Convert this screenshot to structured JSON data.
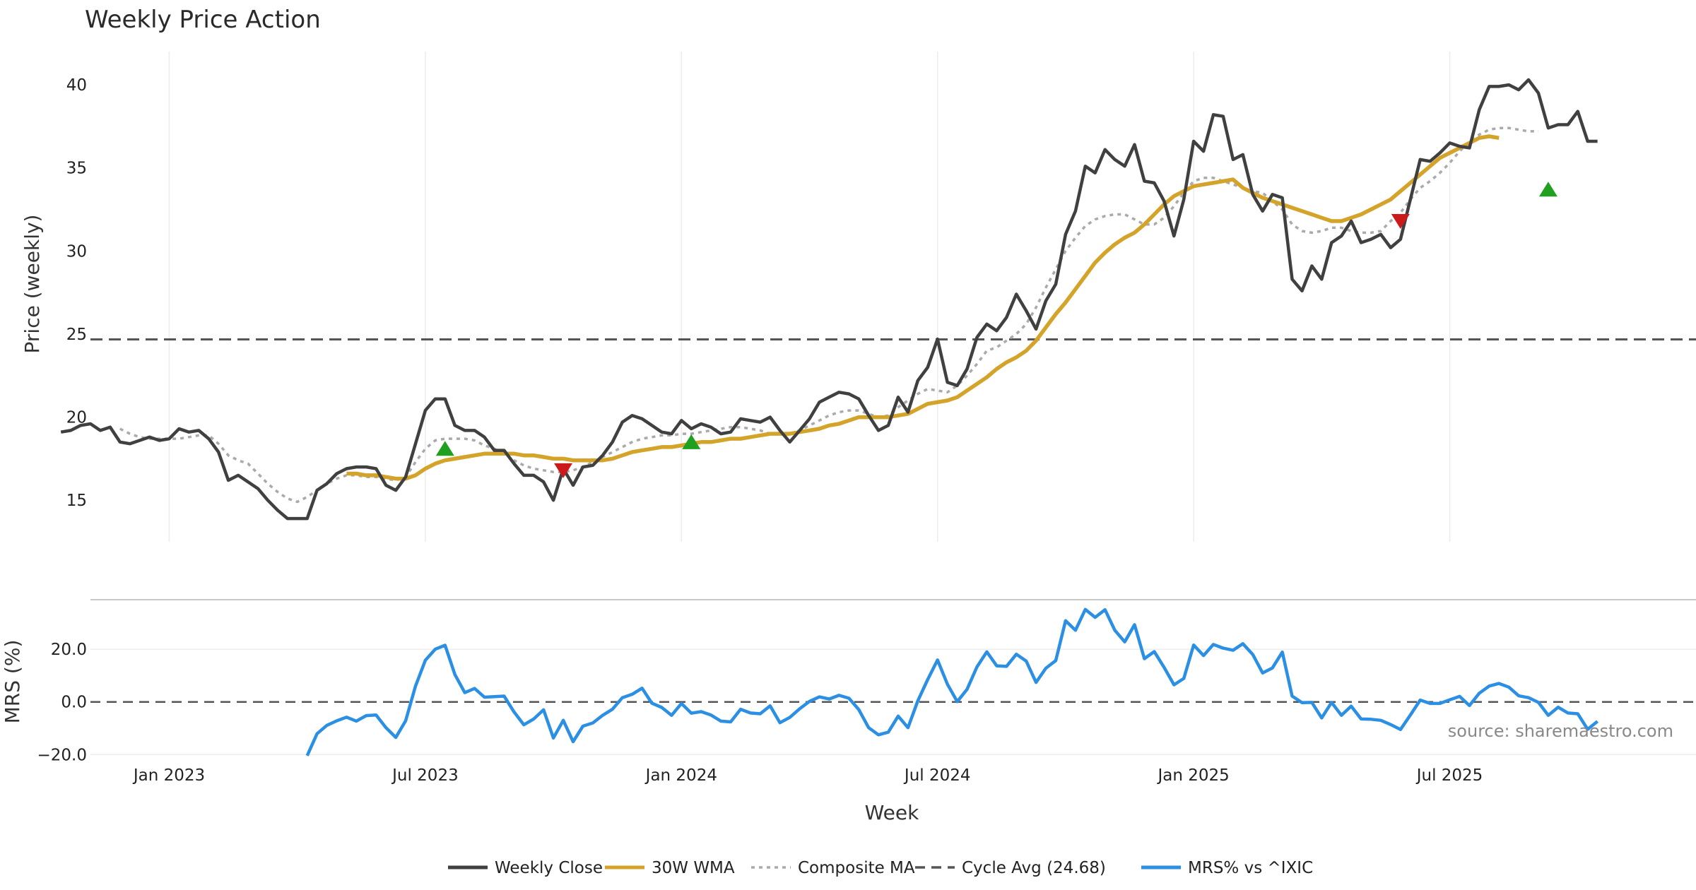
{
  "chart_data": {
    "type": "line",
    "title": "Weekly Price Action",
    "source": "source: sharemaestro.com",
    "xlabel": "Week",
    "x_ticks": [
      {
        "label": "Jan 2023",
        "week": 11
      },
      {
        "label": "Jul 2023",
        "week": 37
      },
      {
        "label": "Jan 2024",
        "week": 63
      },
      {
        "label": "Jul 2024",
        "week": 89
      },
      {
        "label": "Jan 2025",
        "week": 115
      },
      {
        "label": "Jul 2025",
        "week": 141
      }
    ],
    "x_range": [
      3,
      166
    ],
    "price_panel": {
      "ylabel": "Price (weekly)",
      "ylim": [
        12.5,
        42
      ],
      "yticks": [
        15,
        20,
        25,
        30,
        35,
        40
      ],
      "cycle_avg": 24.68,
      "weekly_close": [
        19.1,
        19.2,
        19.5,
        19.6,
        19.2,
        19.4,
        18.5,
        18.4,
        18.6,
        18.8,
        18.6,
        18.7,
        19.3,
        19.1,
        19.2,
        18.7,
        17.9,
        16.2,
        16.5,
        16.1,
        15.7,
        15,
        14.4,
        13.9,
        13.9,
        13.9,
        15.6,
        16,
        16.6,
        16.9,
        17,
        17,
        16.9,
        15.9,
        15.6,
        16.4,
        18.4,
        20.4,
        21.1,
        21.1,
        19.5,
        19.2,
        19.2,
        18.8,
        18,
        18,
        17.2,
        16.5,
        16.5,
        16.1,
        15,
        16.9,
        15.9,
        17,
        17.1,
        17.7,
        18.5,
        19.7,
        20.1,
        19.9,
        19.5,
        19.1,
        19,
        19.8,
        19.3,
        19.6,
        19.4,
        19,
        19.1,
        19.9,
        19.8,
        19.7,
        20,
        19.2,
        18.5,
        19.2,
        19.9,
        20.9,
        21.2,
        21.5,
        21.4,
        21.1,
        20.1,
        19.2,
        19.5,
        21.2,
        20.3,
        22.2,
        23,
        24.7,
        22.1,
        21.9,
        22.9,
        24.8,
        25.6,
        25.2,
        26,
        27.4,
        26.4,
        25.3,
        27,
        28,
        31,
        32.4,
        35.1,
        34.7,
        36.1,
        35.5,
        35.1,
        36.4,
        34.2,
        34.1,
        33,
        30.9,
        33.1,
        36.6,
        36,
        38.2,
        38.1,
        35.5,
        35.8,
        33.4,
        32.4,
        33.4,
        33.2,
        28.3,
        27.6,
        29.1,
        28.3,
        30.5,
        30.9,
        31.8,
        30.5,
        30.7,
        31,
        30.2,
        30.7,
        33.1,
        35.5,
        35.4,
        35.9,
        36.5,
        36.3,
        36.2,
        38.5,
        39.9,
        39.9,
        40,
        39.7,
        40.3,
        39.5,
        37.4,
        37.6,
        37.6,
        38.4,
        36.6,
        36.6
      ],
      "wma_30": [
        null,
        null,
        null,
        null,
        null,
        null,
        null,
        null,
        null,
        null,
        null,
        null,
        null,
        null,
        null,
        null,
        null,
        null,
        null,
        null,
        null,
        null,
        null,
        null,
        null,
        null,
        null,
        null,
        null,
        16.6,
        16.6,
        16.5,
        16.5,
        16.4,
        16.3,
        16.3,
        16.5,
        16.9,
        17.2,
        17.4,
        17.5,
        17.6,
        17.7,
        17.8,
        17.8,
        17.8,
        17.8,
        17.7,
        17.7,
        17.6,
        17.5,
        17.5,
        17.4,
        17.4,
        17.4,
        17.4,
        17.5,
        17.7,
        17.9,
        18,
        18.1,
        18.2,
        18.2,
        18.3,
        18.4,
        18.5,
        18.5,
        18.6,
        18.7,
        18.7,
        18.8,
        18.9,
        19,
        19,
        19,
        19.1,
        19.2,
        19.3,
        19.5,
        19.6,
        19.8,
        20,
        20,
        20,
        20,
        20.1,
        20.2,
        20.5,
        20.8,
        20.9,
        21,
        21.2,
        21.6,
        22,
        22.4,
        22.9,
        23.3,
        23.6,
        24,
        24.6,
        25.4,
        26.2,
        26.9,
        27.7,
        28.5,
        29.3,
        29.9,
        30.4,
        30.8,
        31.1,
        31.6,
        32.2,
        32.8,
        33.3,
        33.6,
        33.9,
        34,
        34.1,
        34.2,
        34.3,
        33.8,
        33.5,
        33.2,
        33,
        32.8,
        32.6,
        32.4,
        32.2,
        32,
        31.8,
        31.8,
        32,
        32.2,
        32.5,
        32.8,
        33.1,
        33.6,
        34.1,
        34.6,
        35.1,
        35.6,
        35.9,
        36.2,
        36.5,
        36.8,
        36.9,
        36.8
      ],
      "composite_ma": [
        null,
        null,
        null,
        null,
        null,
        null,
        19.3,
        19,
        18.8,
        18.7,
        18.7,
        18.7,
        18.7,
        18.8,
        18.9,
        18.9,
        18.4,
        17.7,
        17.4,
        17.2,
        16.6,
        16,
        15.5,
        15.1,
        14.9,
        15.2,
        15.6,
        16,
        16.3,
        16.5,
        16.5,
        16.4,
        16.4,
        16.3,
        16.2,
        16.4,
        17.3,
        18.1,
        18.6,
        18.7,
        18.7,
        18.7,
        18.6,
        18.3,
        18.1,
        17.8,
        17.4,
        17.1,
        16.9,
        16.8,
        16.7,
        16.7,
        16.8,
        17,
        17.3,
        17.6,
        17.9,
        18.2,
        18.5,
        18.7,
        18.8,
        18.9,
        18.9,
        19,
        19,
        19.1,
        19.2,
        19.3,
        19.4,
        19.4,
        19.3,
        19.2,
        19,
        19,
        19,
        19.2,
        19.5,
        19.8,
        20.1,
        20.3,
        20.4,
        20.4,
        20.2,
        20,
        20.1,
        20.6,
        21,
        21.4,
        21.7,
        21.6,
        21.5,
        21.9,
        22.5,
        23.2,
        24,
        24.2,
        24.6,
        25,
        25.6,
        26.6,
        27.8,
        28.9,
        30,
        30.8,
        31.5,
        31.9,
        32.1,
        32.2,
        32.2,
        31.9,
        31.6,
        31.6,
        32,
        32.7,
        33.5,
        34.2,
        34.4,
        34.4,
        34.2,
        34,
        33.8,
        33.6,
        33.5,
        33,
        32.5,
        31.6,
        31.2,
        31.1,
        31.2,
        31.4,
        31.4,
        31.2,
        31.1,
        31.1,
        31.2,
        31.8,
        32.3,
        33.1,
        33.8,
        34.2,
        34.7,
        35.3,
        36,
        36.6,
        37,
        37.3,
        37.4,
        37.4,
        37.3,
        37.2,
        37.2
      ],
      "buy_signals": [
        {
          "week": 39,
          "price": 18.1
        },
        {
          "week": 64,
          "price": 18.5
        },
        {
          "week": 151,
          "price": 33.7
        }
      ],
      "sell_signals": [
        {
          "week": 51,
          "price": 16.8
        },
        {
          "week": 136,
          "price": 31.8
        }
      ]
    },
    "mrs_panel": {
      "ylabel": "MRS (%)",
      "ylim": [
        -21,
        38
      ],
      "yticks": [
        20.0,
        0.0,
        -20.0
      ],
      "ytick_labels": [
        "20.0",
        "0.0",
        "−20.0"
      ],
      "zero_line": 0,
      "mrs": [
        null,
        null,
        null,
        null,
        null,
        null,
        null,
        null,
        null,
        null,
        null,
        null,
        null,
        null,
        null,
        null,
        null,
        null,
        null,
        null,
        null,
        null,
        null,
        null,
        null,
        -20.4,
        -12.1,
        -8.9,
        -7.2,
        -5.8,
        -7.3,
        -5.2,
        -5,
        -9.8,
        -13.5,
        -7.2,
        6,
        15.8,
        20,
        21.5,
        10.4,
        3.5,
        5.1,
        1.8,
        2,
        2.2,
        -3.8,
        -8.7,
        -6.5,
        -3,
        -13.7,
        -7,
        -15.1,
        -9.2,
        -8,
        -5.1,
        -2.8,
        1.6,
        2.9,
        5.2,
        -0.5,
        -2.1,
        -5.1,
        -0.6,
        -4.3,
        -3.7,
        -5,
        -7.3,
        -7.6,
        -2.8,
        -4.2,
        -4.5,
        -1.5,
        -7.9,
        -5.9,
        -2.6,
        0.2,
        1.9,
        1.1,
        2.5,
        1.4,
        -2.9,
        -9.8,
        -12.5,
        -11.5,
        -5.4,
        -9.8,
        0.4,
        8.5,
        15.9,
        6.7,
        0.1,
        4.8,
        13.3,
        19,
        13.7,
        13.5,
        18.1,
        15.5,
        7.4,
        12.8,
        15.7,
        30.8,
        27.2,
        35.1,
        32.1,
        35,
        27.2,
        22.8,
        29.3,
        16.4,
        19.1,
        13.1,
        6.5,
        8.9,
        21.6,
        17.6,
        21.8,
        20.4,
        19.6,
        22.1,
        18,
        11,
        12.9,
        18.9,
        2.2,
        -0.3,
        -0.2,
        -6.1,
        -0.2,
        -5.1,
        -1.6,
        -6.5,
        -6.6,
        -7,
        -8.6,
        -10.5,
        -5,
        0.7,
        -0.6,
        -0.6,
        0.8,
        2.1,
        -1.4,
        3.3,
        6,
        7,
        5.6,
        2.3,
        1.6,
        -0.2,
        -5.1,
        -2,
        -4.2,
        -4.5,
        -10.4,
        -7.4
      ]
    },
    "legend": [
      {
        "label": "Weekly Close",
        "color": "#404040",
        "style": "solid"
      },
      {
        "label": "30W WMA",
        "color": "#d4a42a",
        "style": "solid"
      },
      {
        "label": "Composite MA",
        "color": "#aaaaaa",
        "style": "dotted"
      },
      {
        "label": "Cycle Avg (24.68)",
        "color": "#555555",
        "style": "dashed"
      },
      {
        "label": "MRS% vs ^IXIC",
        "color": "#2b8fe4",
        "style": "solid"
      }
    ],
    "colors": {
      "close": "#404040",
      "wma": "#d4a42a",
      "composite": "#aaaaaa",
      "cycle": "#555555",
      "mrs": "#2b8fe4",
      "buy": "#1fa01f",
      "sell": "#cc1a1a",
      "grid": "#ececec"
    }
  }
}
